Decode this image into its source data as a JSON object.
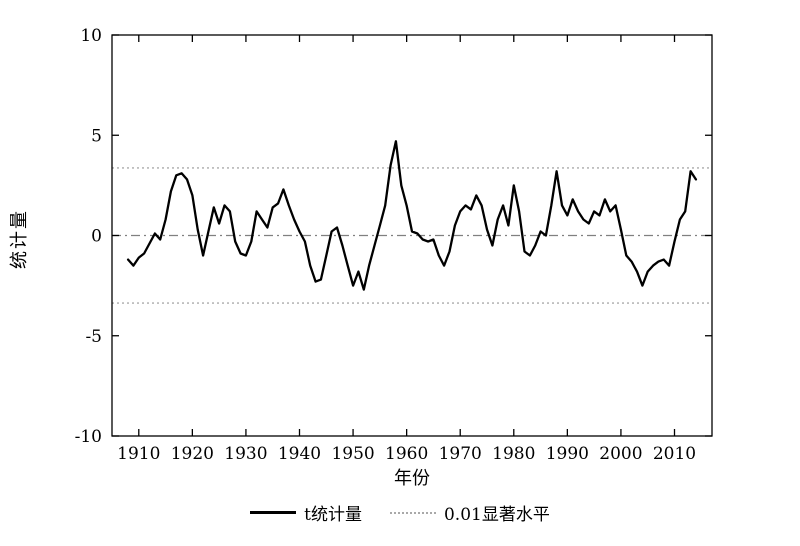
{
  "chart_data": {
    "type": "line",
    "title": "",
    "xlabel": "年份",
    "ylabel": "统计量",
    "xlim": [
      1905,
      2017
    ],
    "ylim": [
      -10,
      10
    ],
    "yticks": [
      -10,
      -5,
      0,
      5,
      10
    ],
    "xticks": [
      1910,
      1920,
      1930,
      1940,
      1950,
      1960,
      1970,
      1980,
      1990,
      2000,
      2010
    ],
    "grid": false,
    "legend_position": "bottom",
    "zero_line": 0,
    "zero_line_color": "#808080",
    "significance_level": 3.37,
    "significance_color": "#aaaaaa",
    "series": [
      {
        "name": "t统计量",
        "style": "solid",
        "color": "#000000",
        "x": [
          1908,
          1909,
          1910,
          1911,
          1912,
          1913,
          1914,
          1915,
          1916,
          1917,
          1918,
          1919,
          1920,
          1921,
          1922,
          1923,
          1924,
          1925,
          1926,
          1927,
          1928,
          1929,
          1930,
          1931,
          1932,
          1933,
          1934,
          1935,
          1936,
          1937,
          1938,
          1939,
          1940,
          1941,
          1942,
          1943,
          1944,
          1945,
          1946,
          1947,
          1948,
          1949,
          1950,
          1951,
          1952,
          1953,
          1954,
          1955,
          1956,
          1957,
          1958,
          1959,
          1960,
          1961,
          1962,
          1963,
          1964,
          1965,
          1966,
          1967,
          1968,
          1969,
          1970,
          1971,
          1972,
          1973,
          1974,
          1975,
          1976,
          1977,
          1978,
          1979,
          1980,
          1981,
          1982,
          1983,
          1984,
          1985,
          1986,
          1987,
          1988,
          1989,
          1990,
          1991,
          1992,
          1993,
          1994,
          1995,
          1996,
          1997,
          1998,
          1999,
          2000,
          2001,
          2002,
          2003,
          2004,
          2005,
          2006,
          2007,
          2008,
          2009,
          2010,
          2011,
          2012,
          2013,
          2014
        ],
        "y": [
          -1.2,
          -1.5,
          -1.1,
          -0.9,
          -0.4,
          0.1,
          -0.2,
          0.8,
          2.2,
          3.0,
          3.1,
          2.8,
          2.0,
          0.3,
          -1.0,
          0.2,
          1.4,
          0.6,
          1.5,
          1.2,
          -0.3,
          -0.9,
          -1.0,
          -0.3,
          1.2,
          0.8,
          0.4,
          1.4,
          1.6,
          2.3,
          1.5,
          0.8,
          0.2,
          -0.3,
          -1.5,
          -2.3,
          -2.2,
          -1.0,
          0.2,
          0.4,
          -0.5,
          -1.5,
          -2.5,
          -1.8,
          -2.7,
          -1.5,
          -0.5,
          0.5,
          1.5,
          3.5,
          4.7,
          2.5,
          1.5,
          0.2,
          0.1,
          -0.2,
          -0.3,
          -0.2,
          -1.0,
          -1.5,
          -0.8,
          0.5,
          1.2,
          1.5,
          1.3,
          2.0,
          1.5,
          0.3,
          -0.5,
          0.8,
          1.5,
          0.5,
          2.5,
          1.2,
          -0.8,
          -1.0,
          -0.5,
          0.2,
          0.0,
          1.5,
          3.2,
          1.5,
          1.0,
          1.8,
          1.2,
          0.8,
          0.6,
          1.2,
          1.0,
          1.8,
          1.2,
          1.5,
          0.3,
          -1.0,
          -1.3,
          -1.8,
          -2.5,
          -1.8,
          -1.5,
          -1.3,
          -1.2,
          -1.5,
          -0.3,
          0.8,
          1.2,
          3.2,
          2.8
        ]
      },
      {
        "name": "0.01显著水平",
        "style": "dotted",
        "color": "#aaaaaa",
        "values": [
          3.37,
          -3.37
        ]
      }
    ]
  }
}
